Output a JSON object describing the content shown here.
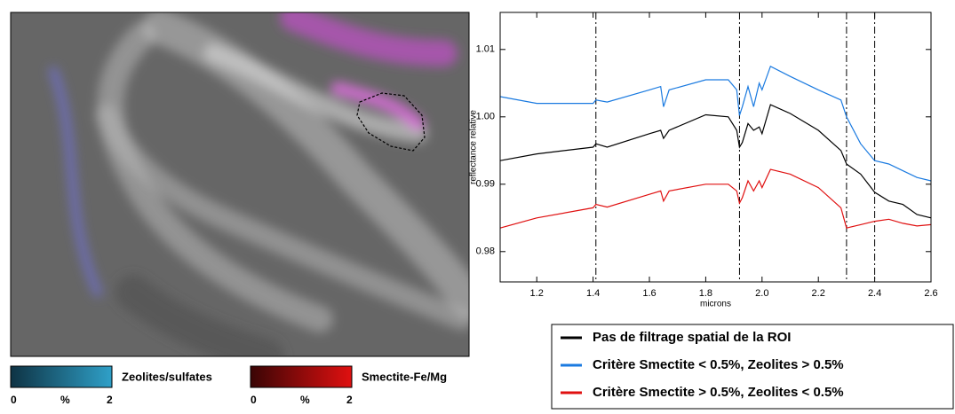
{
  "image": {
    "colorbars": [
      {
        "label": "Zeolites/sulfates",
        "tick_labels": [
          "0",
          "%",
          "2"
        ],
        "colors": [
          "#0e3344",
          "#2fa0c8"
        ]
      },
      {
        "label": "Smectite-Fe/Mg",
        "tick_labels": [
          "0",
          "%",
          "2"
        ],
        "colors": [
          "#3a0505",
          "#e01010"
        ]
      }
    ]
  },
  "chart_data": {
    "type": "line",
    "xlabel": "microns",
    "ylabel": "reflectance relative",
    "x": [
      1.07,
      1.2,
      1.4,
      1.41,
      1.45,
      1.6,
      1.64,
      1.65,
      1.67,
      1.8,
      1.88,
      1.91,
      1.92,
      1.93,
      1.95,
      1.97,
      1.99,
      2.0,
      2.03,
      2.1,
      2.2,
      2.28,
      2.3,
      2.35,
      2.4,
      2.45,
      2.5,
      2.55,
      2.6
    ],
    "series": [
      {
        "name": "Pas de filtrage spatial de la ROI",
        "color": "#000000",
        "values": [
          0.9935,
          0.9945,
          0.9955,
          0.996,
          0.9955,
          0.9975,
          0.998,
          0.9968,
          0.998,
          1.0003,
          1.0,
          0.998,
          0.9955,
          0.9962,
          0.999,
          0.998,
          0.9985,
          0.9975,
          1.0018,
          1.0005,
          0.998,
          0.995,
          0.993,
          0.9915,
          0.9888,
          0.9875,
          0.987,
          0.9855,
          0.985
        ]
      },
      {
        "name": "Critère Smectite < 0.5%, Zeolites > 0.5%",
        "color": "#1a7ae0",
        "values": [
          1.003,
          1.002,
          1.002,
          1.0025,
          1.0022,
          1.004,
          1.0045,
          1.0015,
          1.004,
          1.0055,
          1.0055,
          1.004,
          1.0002,
          1.0015,
          1.0045,
          1.0015,
          1.005,
          1.004,
          1.0075,
          1.006,
          1.004,
          1.0025,
          1.0,
          0.996,
          0.9935,
          0.993,
          0.992,
          0.991,
          0.9905
        ]
      },
      {
        "name": "Critère Smectite > 0.5%, Zeolites < 0.5%",
        "color": "#e01010",
        "values": [
          0.9835,
          0.985,
          0.9865,
          0.987,
          0.9866,
          0.9885,
          0.989,
          0.9875,
          0.989,
          0.99,
          0.99,
          0.989,
          0.9872,
          0.988,
          0.9905,
          0.989,
          0.9905,
          0.9895,
          0.9922,
          0.9915,
          0.9895,
          0.9865,
          0.9835,
          0.984,
          0.9845,
          0.9848,
          0.9842,
          0.9838,
          0.984
        ]
      }
    ],
    "xlim": [
      1.07,
      2.6
    ],
    "ylim": [
      0.9755,
      1.0155
    ],
    "xticks": [
      1.2,
      1.4,
      1.6,
      1.8,
      {
        "value": 2,
        "label": "2.0"
      },
      2.2,
      2.4,
      2.6
    ],
    "yticks": [
      0.98,
      0.99,
      {
        "value": 1,
        "label": "1.00"
      },
      1.01
    ],
    "vlines": [
      1.41,
      1.92,
      2.3,
      2.4
    ]
  }
}
